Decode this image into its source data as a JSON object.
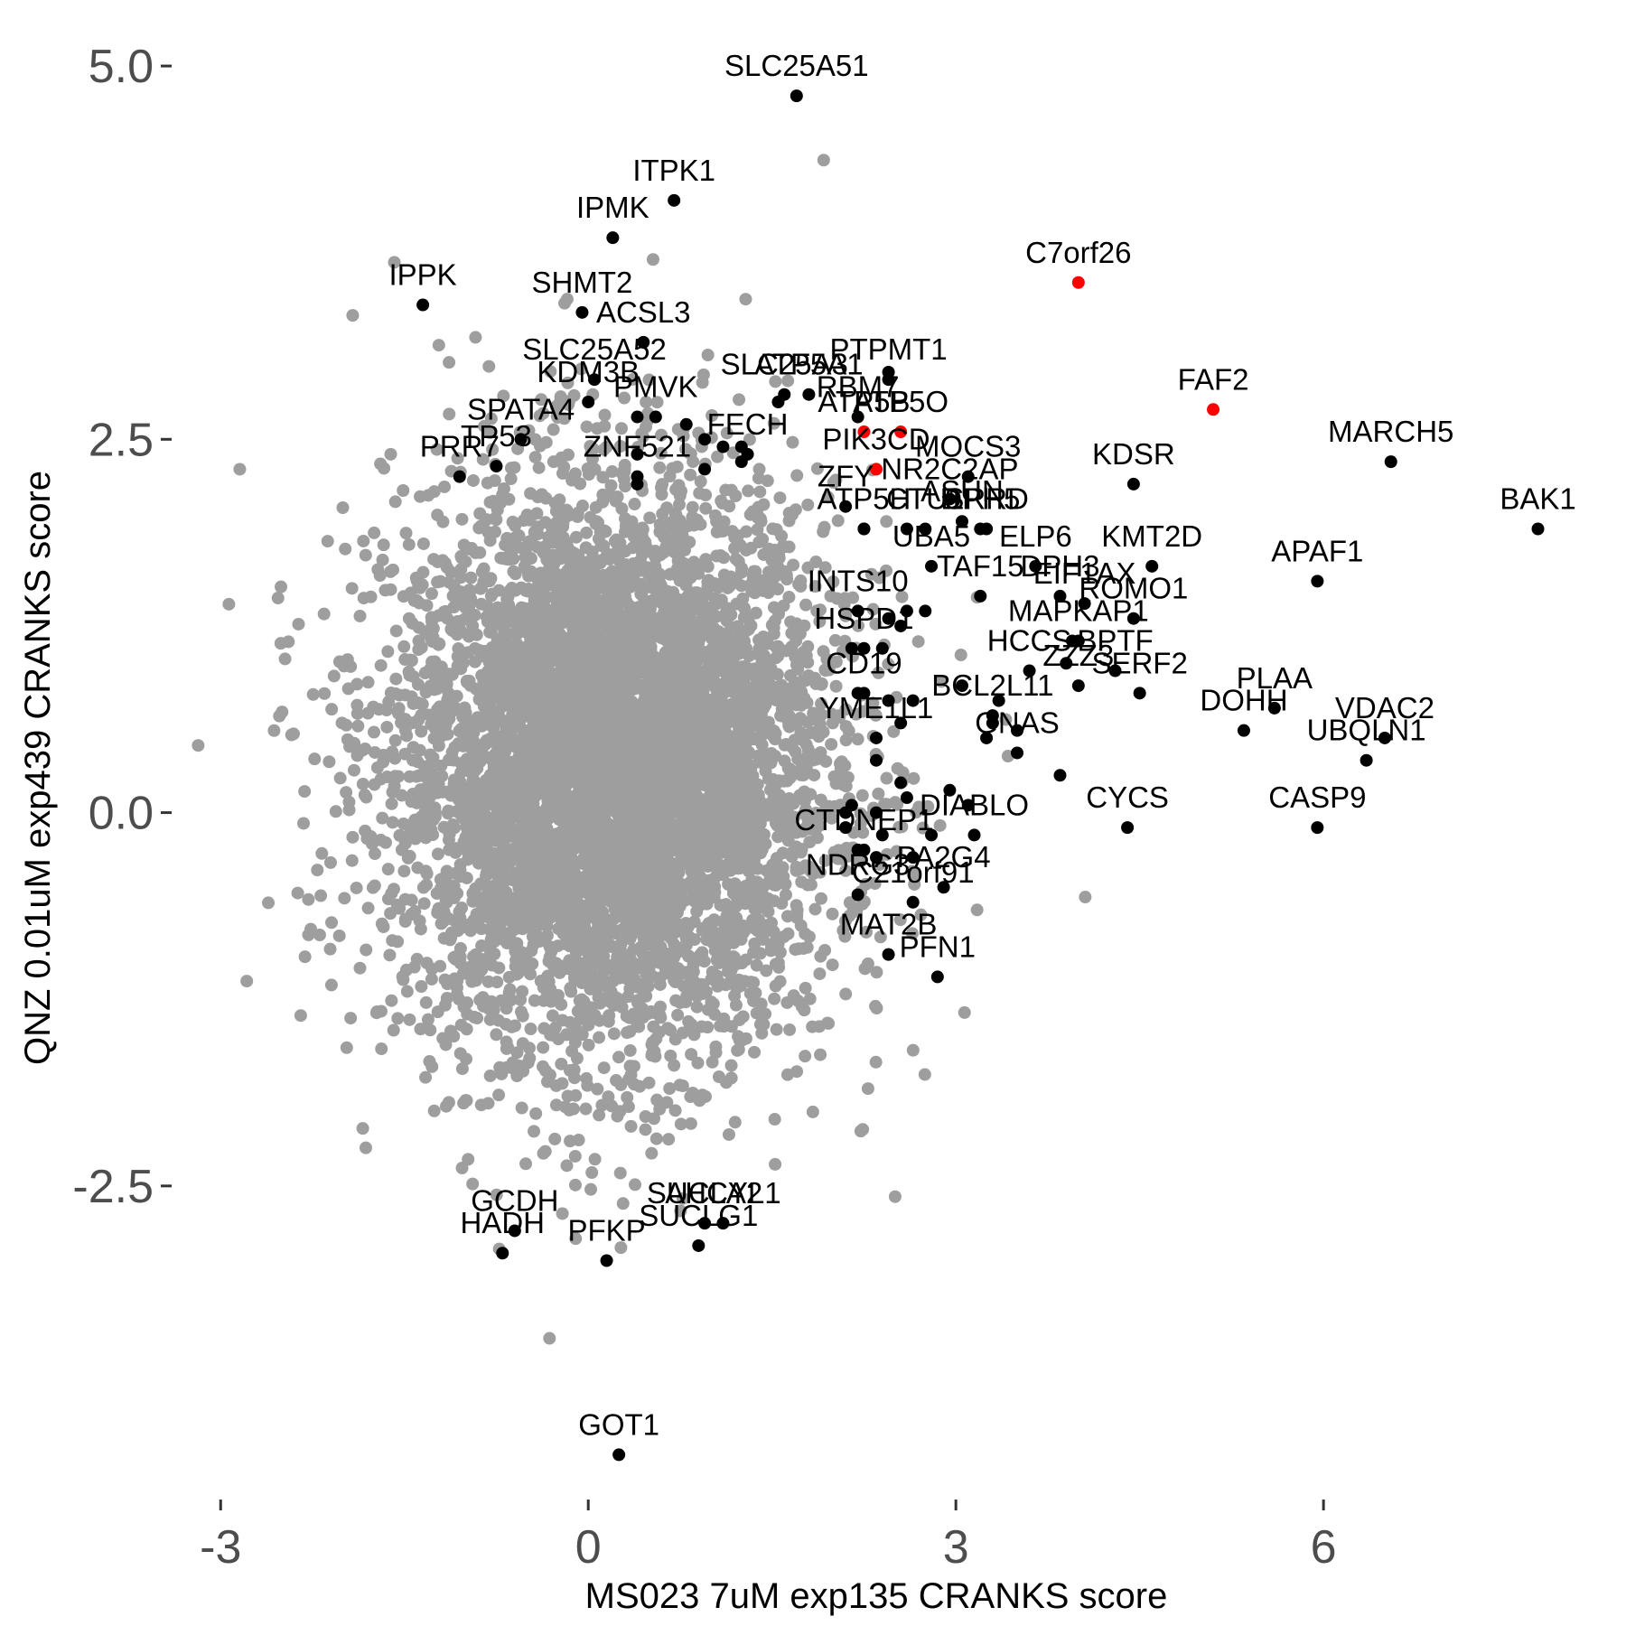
{
  "chart_data": {
    "type": "scatter",
    "xlabel": "MS023 7uM exp135 CRANKS score",
    "ylabel": "QNZ 0.01uM exp439 CRANKS score",
    "xlim": [
      -3.4,
      8.1
    ],
    "ylim": [
      -4.6,
      5.2
    ],
    "xticks": [
      -3,
      0,
      3,
      6
    ],
    "xtick_labels": [
      "-3",
      "0",
      "3",
      "6"
    ],
    "yticks": [
      -2.5,
      0.0,
      2.5,
      5.0
    ],
    "ytick_labels": [
      "-2.5",
      "0.0",
      "2.5",
      "5.0"
    ],
    "grid": false,
    "colors": {
      "background": "#9e9e9e",
      "highlight": "#000000",
      "accent": "#ff0000"
    },
    "background_cloud": {
      "description_count": 6000,
      "center": [
        0.2,
        0.3
      ],
      "sd": [
        0.9,
        0.95
      ],
      "color": "#9e9e9e"
    },
    "labeled_points": [
      {
        "label": "SLC25A51",
        "x": 1.7,
        "y": 4.8,
        "color": "black"
      },
      {
        "label": "ITPK1",
        "x": 0.7,
        "y": 4.1,
        "color": "black"
      },
      {
        "label": "IPMK",
        "x": 0.2,
        "y": 3.85,
        "color": "black"
      },
      {
        "label": "IPPK",
        "x": -1.35,
        "y": 3.4,
        "color": "black"
      },
      {
        "label": "SHMT2",
        "x": -0.05,
        "y": 3.35,
        "color": "black"
      },
      {
        "label": "ACSL3",
        "x": 0.45,
        "y": 3.15,
        "color": "black"
      },
      {
        "label": "SLC25A52",
        "x": 0.05,
        "y": 2.9,
        "color": "black"
      },
      {
        "label": "KDM3B",
        "x": 0.0,
        "y": 2.75,
        "color": "black"
      },
      {
        "label": "PMVK",
        "x": 0.55,
        "y": 2.65,
        "color": "black"
      },
      {
        "label": "PRR7",
        "x": -1.05,
        "y": 2.25,
        "color": "black"
      },
      {
        "label": "TP53",
        "x": -0.75,
        "y": 2.32,
        "color": "black"
      },
      {
        "label": "SPATA4",
        "x": -0.55,
        "y": 2.5,
        "color": "black"
      },
      {
        "label": "ZNF521",
        "x": 0.4,
        "y": 2.25,
        "color": "black"
      },
      {
        "label": "FECH",
        "x": 1.3,
        "y": 2.4,
        "color": "black"
      },
      {
        "label": "ATP5A1",
        "x": 1.8,
        "y": 2.8,
        "color": "black"
      },
      {
        "label": "SLC25A3",
        "x": 1.6,
        "y": 2.8,
        "color": "black"
      },
      {
        "label": "PTPMT1",
        "x": 2.45,
        "y": 2.9,
        "color": "black"
      },
      {
        "label": "RBM7",
        "x": 2.2,
        "y": 2.65,
        "color": "black"
      },
      {
        "label": "ATP5O",
        "x": 2.55,
        "y": 2.55,
        "color": "red"
      },
      {
        "label": "ATP5B",
        "x": 2.25,
        "y": 2.55,
        "color": "red"
      },
      {
        "label": "PIK3CD",
        "x": 2.35,
        "y": 2.3,
        "color": "red"
      },
      {
        "label": "C7orf26",
        "x": 4.0,
        "y": 3.55,
        "color": "red"
      },
      {
        "label": "FAF2",
        "x": 5.1,
        "y": 2.7,
        "color": "red"
      },
      {
        "label": "NR2C2AP",
        "x": 2.95,
        "y": 2.1,
        "color": "black"
      },
      {
        "label": "MOCS3",
        "x": 3.1,
        "y": 2.25,
        "color": "black"
      },
      {
        "label": "ASUN",
        "x": 3.05,
        "y": 1.95,
        "color": "black"
      },
      {
        "label": "DPH5",
        "x": 3.2,
        "y": 1.9,
        "color": "black"
      },
      {
        "label": "KDSR",
        "x": 4.45,
        "y": 2.2,
        "color": "black"
      },
      {
        "label": "SRRD",
        "x": 3.25,
        "y": 1.9,
        "color": "black"
      },
      {
        "label": "CTU1",
        "x": 2.75,
        "y": 1.9,
        "color": "black"
      },
      {
        "label": "ZFY",
        "x": 2.1,
        "y": 2.05,
        "color": "black"
      },
      {
        "label": "ATP5H",
        "x": 2.25,
        "y": 1.9,
        "color": "black"
      },
      {
        "label": "UBA5",
        "x": 2.8,
        "y": 1.65,
        "color": "black"
      },
      {
        "label": "DPH3",
        "x": 3.85,
        "y": 1.45,
        "color": "black"
      },
      {
        "label": "KMT2D",
        "x": 4.6,
        "y": 1.65,
        "color": "black"
      },
      {
        "label": "ELP6",
        "x": 3.65,
        "y": 1.65,
        "color": "black"
      },
      {
        "label": "ROMO1",
        "x": 4.45,
        "y": 1.3,
        "color": "black"
      },
      {
        "label": "MARCH5",
        "x": 6.55,
        "y": 2.35,
        "color": "black"
      },
      {
        "label": "BAK1",
        "x": 7.75,
        "y": 1.9,
        "color": "black"
      },
      {
        "label": "APAF1",
        "x": 5.95,
        "y": 1.55,
        "color": "black"
      },
      {
        "label": "EIF1AX",
        "x": 4.05,
        "y": 1.4,
        "color": "black"
      },
      {
        "label": "INTS10",
        "x": 2.2,
        "y": 1.35,
        "color": "black"
      },
      {
        "label": "TAF15",
        "x": 3.2,
        "y": 1.45,
        "color": "black"
      },
      {
        "label": "MAPKAP1",
        "x": 4.0,
        "y": 1.15,
        "color": "black"
      },
      {
        "label": "HSPD1",
        "x": 2.25,
        "y": 1.1,
        "color": "black"
      },
      {
        "label": "HCCS",
        "x": 3.6,
        "y": 0.95,
        "color": "black"
      },
      {
        "label": "BPTF",
        "x": 4.3,
        "y": 0.95,
        "color": "black"
      },
      {
        "label": "PLAA",
        "x": 5.6,
        "y": 0.7,
        "color": "black"
      },
      {
        "label": "SERF2",
        "x": 4.5,
        "y": 0.8,
        "color": "black"
      },
      {
        "label": "BCL2L11",
        "x": 3.3,
        "y": 0.65,
        "color": "black"
      },
      {
        "label": "CD19",
        "x": 2.25,
        "y": 0.8,
        "color": "black"
      },
      {
        "label": "VDAC2",
        "x": 6.5,
        "y": 0.5,
        "color": "black"
      },
      {
        "label": "ZZZ3",
        "x": 4.0,
        "y": 0.85,
        "color": "black"
      },
      {
        "label": "DOHH",
        "x": 5.35,
        "y": 0.55,
        "color": "black"
      },
      {
        "label": "YME1L1",
        "x": 2.35,
        "y": 0.5,
        "color": "black"
      },
      {
        "label": "GNAS",
        "x": 3.5,
        "y": 0.4,
        "color": "black"
      },
      {
        "label": "UBQLN1",
        "x": 6.35,
        "y": 0.35,
        "color": "black"
      },
      {
        "label": "DIABLO",
        "x": 3.15,
        "y": -0.15,
        "color": "black"
      },
      {
        "label": "CYCS",
        "x": 4.4,
        "y": -0.1,
        "color": "black"
      },
      {
        "label": "CASP9",
        "x": 5.95,
        "y": -0.1,
        "color": "black"
      },
      {
        "label": "CTDNEP1",
        "x": 2.25,
        "y": -0.25,
        "color": "black"
      },
      {
        "label": "PA2G4",
        "x": 2.9,
        "y": -0.5,
        "color": "black"
      },
      {
        "label": "NDRG3",
        "x": 2.2,
        "y": -0.55,
        "color": "black"
      },
      {
        "label": "C21orf91",
        "x": 2.65,
        "y": -0.6,
        "color": "black"
      },
      {
        "label": "MAT2B",
        "x": 2.45,
        "y": -0.95,
        "color": "black"
      },
      {
        "label": "PFN1",
        "x": 2.85,
        "y": -1.1,
        "color": "black"
      },
      {
        "label": "GCDH",
        "x": -0.6,
        "y": -2.8,
        "color": "black"
      },
      {
        "label": "SUCLA2",
        "x": 0.95,
        "y": -2.75,
        "color": "black"
      },
      {
        "label": "AHCYL1",
        "x": 1.1,
        "y": -2.75,
        "color": "black"
      },
      {
        "label": "HADH",
        "x": -0.7,
        "y": -2.95,
        "color": "black"
      },
      {
        "label": "PFKP",
        "x": 0.15,
        "y": -3.0,
        "color": "black"
      },
      {
        "label": "SUCLG1",
        "x": 0.9,
        "y": -2.9,
        "color": "black"
      },
      {
        "label": "GOT1",
        "x": 0.25,
        "y": -4.3,
        "color": "black"
      }
    ],
    "unlabeled_highlights": [
      [
        0.4,
        2.65
      ],
      [
        0.8,
        2.6
      ],
      [
        0.95,
        2.5
      ],
      [
        1.1,
        2.45
      ],
      [
        1.25,
        2.45
      ],
      [
        0.4,
        2.4
      ],
      [
        0.95,
        2.3
      ],
      [
        0.4,
        2.2
      ],
      [
        1.25,
        2.35
      ],
      [
        2.25,
        1.9
      ],
      [
        2.6,
        1.9
      ],
      [
        2.6,
        1.35
      ],
      [
        2.75,
        1.35
      ],
      [
        2.55,
        1.25
      ],
      [
        2.45,
        1.3
      ],
      [
        2.15,
        1.1
      ],
      [
        2.4,
        1.1
      ],
      [
        2.2,
        0.8
      ],
      [
        2.45,
        0.75
      ],
      [
        2.65,
        0.75
      ],
      [
        2.55,
        0.6
      ],
      [
        2.35,
        0.35
      ],
      [
        2.55,
        0.2
      ],
      [
        2.6,
        0.1
      ],
      [
        2.15,
        0.05
      ],
      [
        2.1,
        0.0
      ],
      [
        2.35,
        0.0
      ],
      [
        2.1,
        -0.1
      ],
      [
        2.4,
        -0.15
      ],
      [
        2.8,
        -0.15
      ],
      [
        2.2,
        -0.25
      ],
      [
        2.35,
        -0.3
      ],
      [
        2.65,
        -0.3
      ],
      [
        3.1,
        0.05
      ],
      [
        2.95,
        0.15
      ],
      [
        3.35,
        0.75
      ],
      [
        3.5,
        0.55
      ],
      [
        3.25,
        0.5
      ],
      [
        3.3,
        0.6
      ],
      [
        3.85,
        0.25
      ],
      [
        3.05,
        0.85
      ],
      [
        3.95,
        1.15
      ],
      [
        3.9,
        1.0
      ],
      [
        2.45,
        2.95
      ],
      [
        1.55,
        2.75
      ]
    ]
  }
}
